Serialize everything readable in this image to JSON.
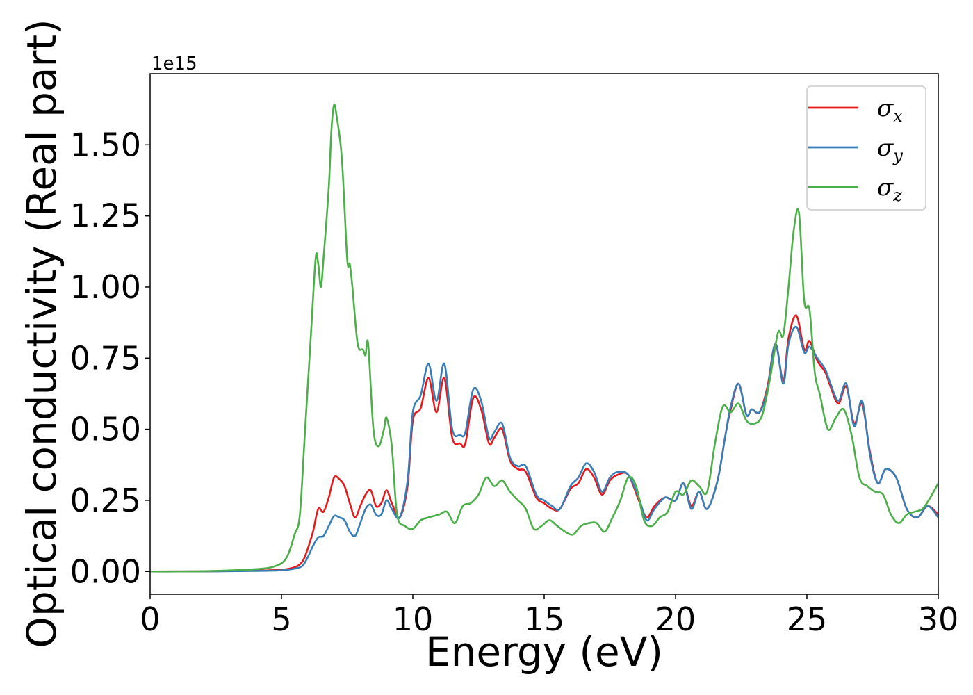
{
  "chart_data": {
    "type": "line",
    "xlabel": "Energy (eV)",
    "ylabel": "Optical conductivity (Real part)",
    "y_offset_text": "1e15",
    "xlim": [
      0,
      30
    ],
    "ylim": [
      -0.08,
      1.75
    ],
    "x_ticks": [
      0,
      5,
      10,
      15,
      20,
      25,
      30
    ],
    "x_tick_labels": [
      "0",
      "5",
      "10",
      "15",
      "20",
      "25",
      "30"
    ],
    "y_ticks": [
      0.0,
      0.25,
      0.5,
      0.75,
      1.0,
      1.25,
      1.5
    ],
    "y_tick_labels": [
      "0.00",
      "0.25",
      "0.50",
      "0.75",
      "1.00",
      "1.25",
      "1.50"
    ],
    "grid": false,
    "legend_position": "top-right",
    "series": [
      {
        "name": "σx",
        "symbol": "σ",
        "subscript": "x",
        "color": "#e41a1c",
        "x": [
          0,
          2,
          4,
          5,
          5.5,
          5.8,
          6.0,
          6.2,
          6.4,
          6.6,
          6.8,
          7.0,
          7.2,
          7.4,
          7.6,
          7.8,
          8.0,
          8.2,
          8.4,
          8.6,
          8.8,
          9.0,
          9.2,
          9.5,
          9.8,
          10.0,
          10.3,
          10.6,
          10.9,
          11.2,
          11.5,
          11.8,
          12.0,
          12.3,
          12.6,
          12.9,
          13.1,
          13.4,
          13.7,
          14.0,
          14.3,
          14.7,
          15.0,
          15.3,
          15.6,
          16.0,
          16.3,
          16.6,
          16.9,
          17.2,
          17.5,
          17.8,
          18.2,
          18.6,
          18.9,
          19.2,
          19.6,
          20.0,
          20.3,
          20.6,
          20.9,
          21.2,
          21.6,
          21.9,
          22.1,
          22.4,
          22.7,
          22.9,
          23.2,
          23.5,
          23.8,
          24.1,
          24.3,
          24.6,
          24.9,
          25.1,
          25.4,
          25.7,
          25.9,
          26.2,
          26.5,
          26.8,
          27.1,
          27.4,
          27.7,
          28.0,
          28.4,
          28.8,
          29.2,
          29.6,
          30
        ],
        "y": [
          0,
          0.0005,
          0.003,
          0.006,
          0.015,
          0.035,
          0.08,
          0.14,
          0.22,
          0.21,
          0.26,
          0.33,
          0.325,
          0.3,
          0.24,
          0.19,
          0.23,
          0.27,
          0.285,
          0.23,
          0.24,
          0.285,
          0.24,
          0.19,
          0.3,
          0.53,
          0.575,
          0.68,
          0.56,
          0.68,
          0.47,
          0.45,
          0.45,
          0.61,
          0.57,
          0.45,
          0.47,
          0.5,
          0.39,
          0.36,
          0.35,
          0.26,
          0.24,
          0.22,
          0.22,
          0.29,
          0.31,
          0.36,
          0.33,
          0.27,
          0.32,
          0.34,
          0.34,
          0.25,
          0.19,
          0.23,
          0.26,
          0.25,
          0.31,
          0.23,
          0.28,
          0.22,
          0.32,
          0.48,
          0.57,
          0.66,
          0.55,
          0.57,
          0.56,
          0.65,
          0.8,
          0.67,
          0.82,
          0.9,
          0.78,
          0.81,
          0.74,
          0.7,
          0.65,
          0.59,
          0.65,
          0.52,
          0.59,
          0.42,
          0.31,
          0.36,
          0.33,
          0.22,
          0.19,
          0.23,
          0.2
        ]
      },
      {
        "name": "σy",
        "symbol": "σ",
        "subscript": "y",
        "color": "#377eb8",
        "x": [
          0,
          2,
          4,
          5,
          5.5,
          5.8,
          6.0,
          6.2,
          6.4,
          6.6,
          6.8,
          7.0,
          7.2,
          7.4,
          7.6,
          7.8,
          8.0,
          8.2,
          8.4,
          8.6,
          8.8,
          9.0,
          9.2,
          9.5,
          9.8,
          10.0,
          10.3,
          10.6,
          10.9,
          11.2,
          11.5,
          11.8,
          12.0,
          12.3,
          12.6,
          12.9,
          13.1,
          13.4,
          13.7,
          14.0,
          14.3,
          14.7,
          15.0,
          15.3,
          15.6,
          16.0,
          16.3,
          16.6,
          16.9,
          17.2,
          17.5,
          17.8,
          18.2,
          18.6,
          18.9,
          19.2,
          19.6,
          20.0,
          20.3,
          20.6,
          20.9,
          21.2,
          21.6,
          21.9,
          22.1,
          22.4,
          22.7,
          22.9,
          23.2,
          23.5,
          23.8,
          24.1,
          24.3,
          24.6,
          24.9,
          25.1,
          25.4,
          25.7,
          25.9,
          26.2,
          26.5,
          26.8,
          27.1,
          27.4,
          27.7,
          28.0,
          28.4,
          28.8,
          29.2,
          29.6,
          30
        ],
        "y": [
          0,
          0.0003,
          0.002,
          0.004,
          0.01,
          0.02,
          0.05,
          0.09,
          0.12,
          0.125,
          0.16,
          0.195,
          0.19,
          0.18,
          0.14,
          0.125,
          0.17,
          0.22,
          0.235,
          0.2,
          0.2,
          0.25,
          0.22,
          0.19,
          0.32,
          0.56,
          0.62,
          0.73,
          0.6,
          0.73,
          0.5,
          0.48,
          0.49,
          0.64,
          0.6,
          0.47,
          0.49,
          0.52,
          0.4,
          0.37,
          0.37,
          0.27,
          0.25,
          0.23,
          0.22,
          0.3,
          0.33,
          0.38,
          0.35,
          0.28,
          0.33,
          0.35,
          0.34,
          0.26,
          0.18,
          0.22,
          0.26,
          0.25,
          0.31,
          0.22,
          0.28,
          0.22,
          0.32,
          0.48,
          0.58,
          0.66,
          0.55,
          0.57,
          0.56,
          0.64,
          0.8,
          0.66,
          0.8,
          0.86,
          0.77,
          0.79,
          0.75,
          0.71,
          0.66,
          0.6,
          0.66,
          0.51,
          0.6,
          0.41,
          0.31,
          0.36,
          0.33,
          0.22,
          0.19,
          0.23,
          0.19
        ]
      },
      {
        "name": "σz",
        "symbol": "σ",
        "subscript": "z",
        "color": "#4daf4a",
        "x": [
          0,
          2,
          4,
          4.8,
          5.2,
          5.5,
          5.7,
          5.9,
          6.1,
          6.3,
          6.4,
          6.5,
          6.6,
          6.8,
          6.9,
          7.0,
          7.1,
          7.3,
          7.5,
          7.6,
          7.7,
          7.9,
          8.1,
          8.2,
          8.3,
          8.5,
          8.7,
          8.9,
          9.0,
          9.2,
          9.4,
          9.7,
          10.0,
          10.3,
          10.6,
          11.0,
          11.3,
          11.6,
          11.9,
          12.2,
          12.5,
          12.8,
          13.1,
          13.4,
          13.7,
          14.0,
          14.3,
          14.6,
          14.9,
          15.2,
          15.5,
          15.8,
          16.1,
          16.4,
          16.7,
          17.0,
          17.3,
          17.6,
          17.9,
          18.2,
          18.5,
          18.8,
          19.1,
          19.4,
          19.7,
          20.0,
          20.3,
          20.6,
          20.9,
          21.2,
          21.5,
          21.8,
          22.1,
          22.4,
          22.7,
          23.0,
          23.3,
          23.6,
          23.9,
          24.1,
          24.3,
          24.5,
          24.7,
          24.9,
          25.1,
          25.3,
          25.5,
          25.8,
          26.1,
          26.4,
          26.7,
          27.0,
          27.3,
          27.6,
          27.9,
          28.2,
          28.5,
          28.8,
          29.1,
          29.4,
          29.7,
          30
        ],
        "y": [
          0,
          0.0008,
          0.008,
          0.02,
          0.05,
          0.13,
          0.2,
          0.5,
          0.8,
          1.1,
          1.08,
          1.0,
          1.1,
          1.35,
          1.55,
          1.64,
          1.6,
          1.45,
          1.1,
          1.08,
          1.0,
          0.8,
          0.78,
          0.76,
          0.8,
          0.5,
          0.44,
          0.5,
          0.54,
          0.44,
          0.2,
          0.16,
          0.15,
          0.18,
          0.19,
          0.2,
          0.21,
          0.17,
          0.23,
          0.24,
          0.27,
          0.33,
          0.3,
          0.32,
          0.28,
          0.25,
          0.22,
          0.15,
          0.16,
          0.18,
          0.16,
          0.14,
          0.13,
          0.16,
          0.17,
          0.17,
          0.14,
          0.19,
          0.25,
          0.33,
          0.3,
          0.18,
          0.16,
          0.19,
          0.21,
          0.28,
          0.27,
          0.32,
          0.3,
          0.28,
          0.45,
          0.58,
          0.56,
          0.59,
          0.53,
          0.52,
          0.55,
          0.68,
          0.84,
          0.83,
          1.0,
          1.2,
          1.26,
          0.95,
          0.92,
          0.7,
          0.62,
          0.5,
          0.54,
          0.57,
          0.48,
          0.33,
          0.3,
          0.28,
          0.27,
          0.2,
          0.17,
          0.2,
          0.21,
          0.22,
          0.26,
          0.31
        ]
      }
    ]
  }
}
